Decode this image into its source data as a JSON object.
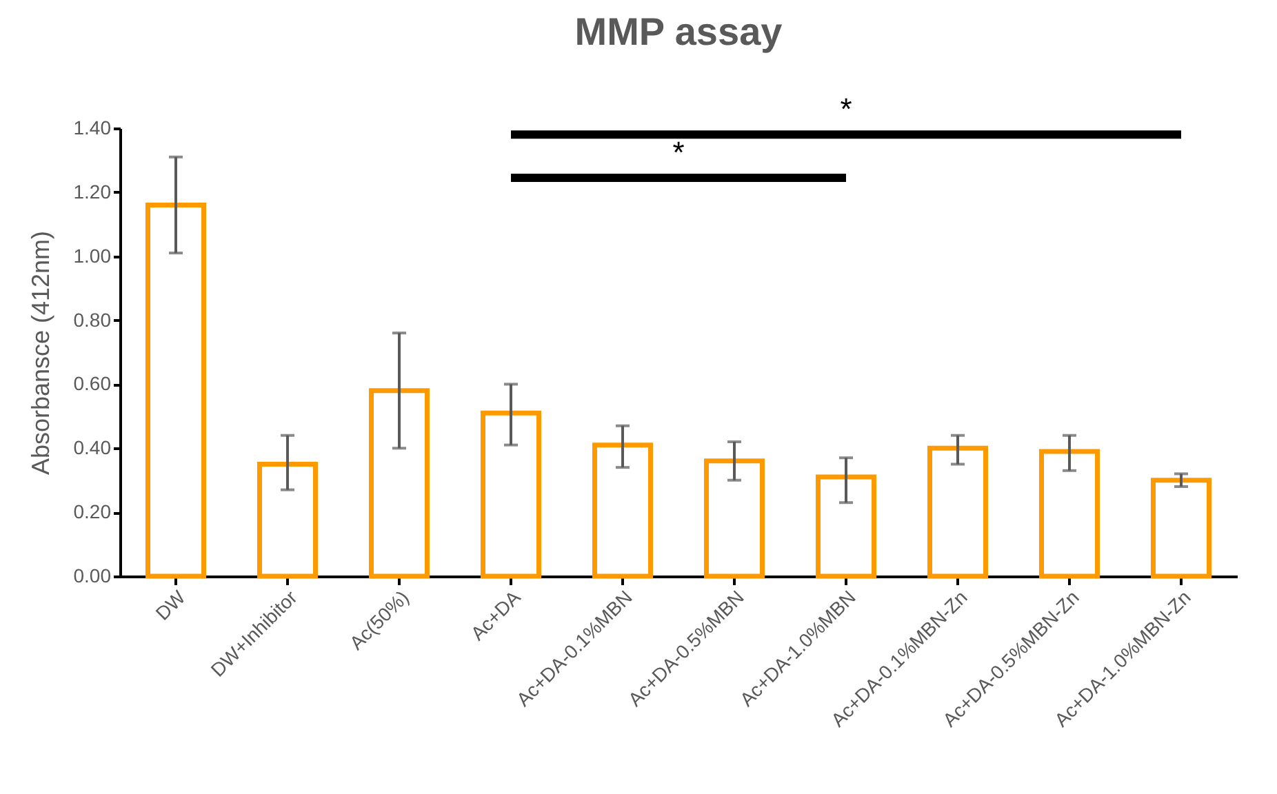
{
  "chart_data": {
    "type": "bar",
    "title": "MMP assay",
    "ylabel": "Absorbansce (412nm)",
    "categories": [
      "DW",
      "DW+Inhibitor",
      "Ac(50%)",
      "Ac+DA",
      "Ac+DA-0.1%MBN",
      "Ac+DA-0.5%MBN",
      "Ac+DA-1.0%MBN",
      "Ac+DA-0.1%MBN-Zn",
      "Ac+DA-0.5%MBN-Zn",
      "Ac+DA-1.0%MBN-Zn"
    ],
    "values": [
      1.16,
      0.35,
      0.58,
      0.51,
      0.41,
      0.36,
      0.31,
      0.4,
      0.39,
      0.3
    ],
    "errors": [
      [
        1.01,
        1.31
      ],
      [
        0.27,
        0.44
      ],
      [
        0.4,
        0.76
      ],
      [
        0.41,
        0.6
      ],
      [
        0.34,
        0.47
      ],
      [
        0.3,
        0.42
      ],
      [
        0.23,
        0.37
      ],
      [
        0.35,
        0.44
      ],
      [
        0.33,
        0.44
      ],
      [
        0.28,
        0.32
      ]
    ],
    "color": "#ff9900",
    "ylim": [
      0,
      1.4
    ],
    "yticks": [
      {
        "value": 0,
        "label": "0.00"
      },
      {
        "value": 0.2,
        "label": "0.20"
      },
      {
        "value": 0.4,
        "label": "0.40"
      },
      {
        "value": 0.6,
        "label": "0.60"
      },
      {
        "value": 0.8,
        "label": "0.80"
      },
      {
        "value": 1,
        "label": "1.00"
      },
      {
        "value": 1.2,
        "label": "1.20"
      },
      {
        "value": 1.4,
        "label": "1.40"
      }
    ],
    "grid": false,
    "annotations": [
      "*",
      "*"
    ]
  }
}
